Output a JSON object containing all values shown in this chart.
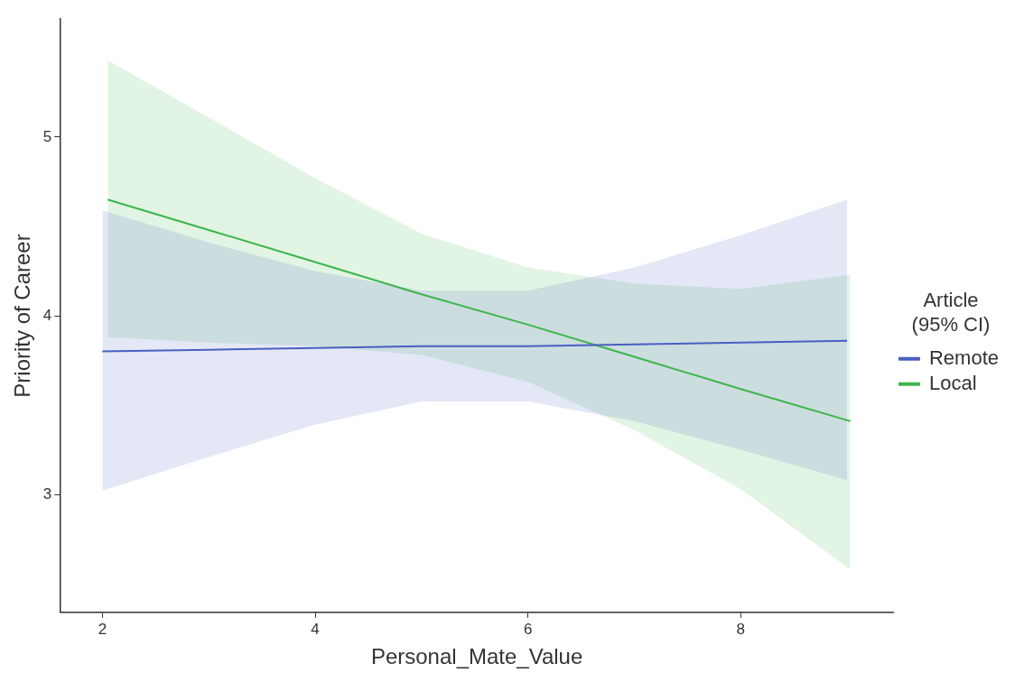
{
  "chart_data": {
    "type": "line",
    "xlabel": "Personal_Mate_Value",
    "ylabel": "Priority of Career",
    "legend_title": "Article\n(95% CI)",
    "xlim": [
      1.6,
      9.44
    ],
    "xticks": [
      2,
      4,
      6,
      8
    ],
    "ylim": [
      2.34,
      5.66
    ],
    "yticks": [
      3,
      4,
      5
    ],
    "grid": false,
    "legend": "right",
    "marker": "none",
    "series": [
      {
        "name": "Remote",
        "color": "#4a5fc1",
        "x": [
          2,
          3,
          4,
          5,
          6,
          7,
          8,
          9
        ],
        "values": [
          3.8,
          3.81,
          3.82,
          3.83,
          3.83,
          3.84,
          3.85,
          3.86
        ],
        "lower": [
          3.02,
          3.21,
          3.39,
          3.52,
          3.52,
          3.41,
          3.25,
          3.08
        ],
        "upper": [
          4.59,
          4.41,
          4.25,
          4.14,
          4.14,
          4.27,
          4.45,
          4.65
        ]
      },
      {
        "name": "Local",
        "color": "#3cb54a",
        "x": [
          2.05,
          3,
          4,
          5,
          6,
          7,
          8,
          9.03
        ],
        "values": [
          4.65,
          4.48,
          4.3,
          4.12,
          3.95,
          3.77,
          3.59,
          3.41
        ],
        "lower": [
          3.88,
          3.85,
          3.83,
          3.78,
          3.63,
          3.36,
          3.03,
          2.58
        ],
        "upper": [
          5.43,
          5.11,
          4.77,
          4.46,
          4.27,
          4.18,
          4.15,
          4.23
        ]
      }
    ]
  }
}
